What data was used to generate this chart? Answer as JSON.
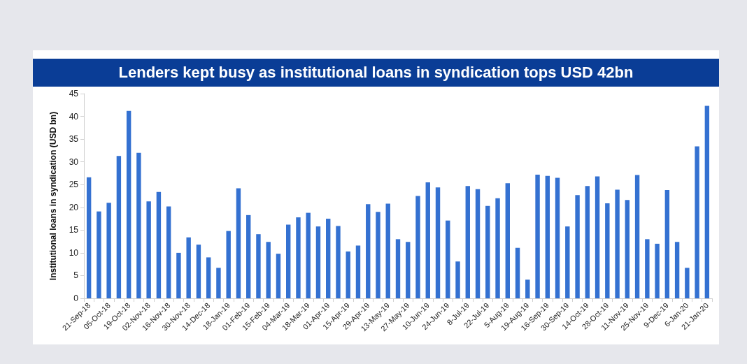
{
  "chart_data": {
    "type": "bar",
    "title": "Lenders kept busy as institutional loans in syndication tops USD 42bn",
    "ylabel": "Institutional loans in syndication (USD bn)",
    "categories": [
      "21-Sep-18",
      null,
      "05-Oct-18",
      null,
      "19-Oct-18",
      null,
      "02-Nov-18",
      null,
      "16-Nov-18",
      null,
      "30-Nov-18",
      null,
      "14-Dec-18",
      null,
      "18-Jan-19",
      null,
      "01-Feb-19",
      null,
      "15-Feb-19",
      null,
      "04-Mar-19",
      null,
      "18-Mar-19",
      null,
      "01-Apr-19",
      null,
      "15-Apr-19",
      null,
      "29-Apr-19",
      null,
      "13-May-19",
      null,
      "27-May-19",
      null,
      "10-Jun-19",
      null,
      "24-Jun-19",
      null,
      "8-Jul-19",
      null,
      "22-Jul-19",
      null,
      "5-Aug-19",
      null,
      "19-Aug-19",
      null,
      "16-Sep-19",
      null,
      "30-Sep-19",
      null,
      "14-Oct-19",
      null,
      "28-Oct-19",
      null,
      "11-Nov-19",
      null,
      "25-Nov-19",
      null,
      "9-Dec-19",
      null,
      "6-Jan-20",
      null,
      "21-Jan-20"
    ],
    "values": [
      26.6,
      19.1,
      21.0,
      31.3,
      41.2,
      32.0,
      21.3,
      23.4,
      20.2,
      10.0,
      13.4,
      11.8,
      9.0,
      6.7,
      14.8,
      24.2,
      18.3,
      14.1,
      12.4,
      9.8,
      16.2,
      17.8,
      18.8,
      15.8,
      17.5,
      15.9,
      10.3,
      11.6,
      20.7,
      19.0,
      20.8,
      13.0,
      12.4,
      22.5,
      25.5,
      24.4,
      17.1,
      8.1,
      24.7,
      24.0,
      20.3,
      22.0,
      25.3,
      11.1,
      4.1,
      27.2,
      26.9,
      26.5,
      15.8,
      22.7,
      24.7,
      26.8,
      20.9,
      23.9,
      21.6,
      27.1,
      13.0,
      12.0,
      23.8,
      12.4,
      6.7,
      33.4,
      42.3
    ],
    "color": "#3471d1",
    "ylim": [
      0,
      45
    ],
    "yticks": [
      0,
      5,
      10,
      15,
      20,
      25,
      30,
      35,
      40,
      45
    ],
    "grid": false
  }
}
